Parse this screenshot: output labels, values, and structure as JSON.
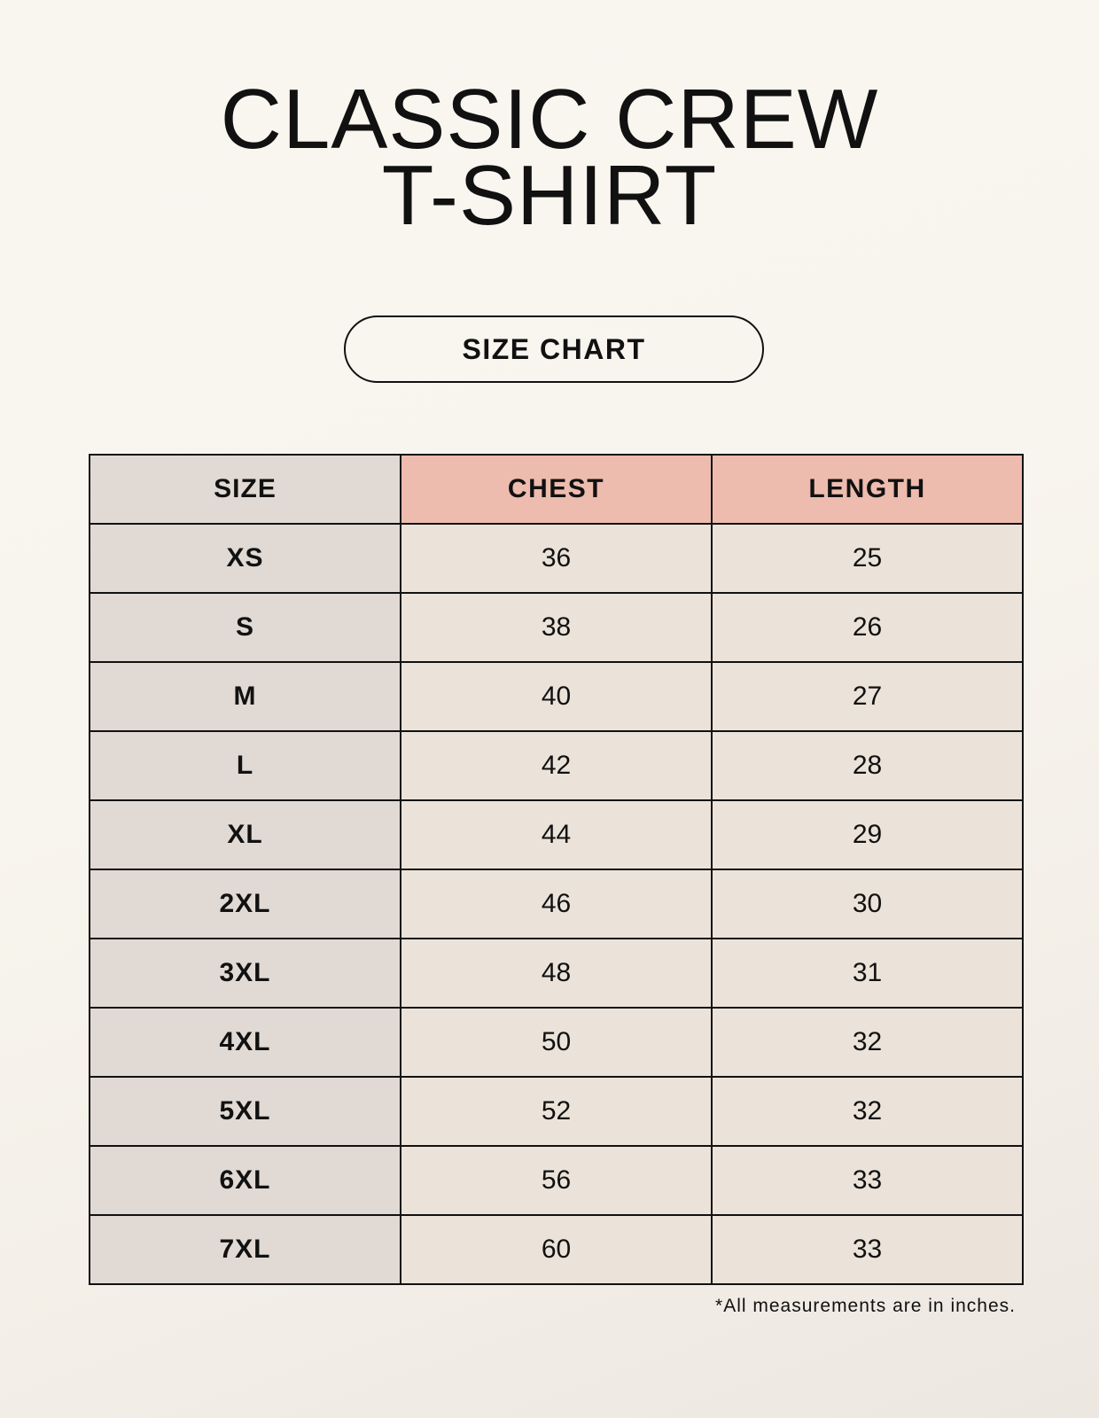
{
  "title_lines": [
    "CLASSIC CREW",
    "T-SHIRT"
  ],
  "badge": "SIZE CHART",
  "table": {
    "headers": [
      "SIZE",
      "CHEST",
      "LENGTH"
    ],
    "rows": [
      [
        "XS",
        "36",
        "25"
      ],
      [
        "S",
        "38",
        "26"
      ],
      [
        "M",
        "40",
        "27"
      ],
      [
        "L",
        "42",
        "28"
      ],
      [
        "XL",
        "44",
        "29"
      ],
      [
        "2XL",
        "46",
        "30"
      ],
      [
        "3XL",
        "48",
        "31"
      ],
      [
        "4XL",
        "50",
        "32"
      ],
      [
        "5XL",
        "52",
        "32"
      ],
      [
        "6XL",
        "56",
        "33"
      ],
      [
        "7XL",
        "60",
        "33"
      ]
    ]
  },
  "note": "*All measurements are in inches.",
  "colors": {
    "size_column": "#e1d9d3",
    "header_accent": "#edbcae",
    "value_cells": "#ebe3d9"
  }
}
